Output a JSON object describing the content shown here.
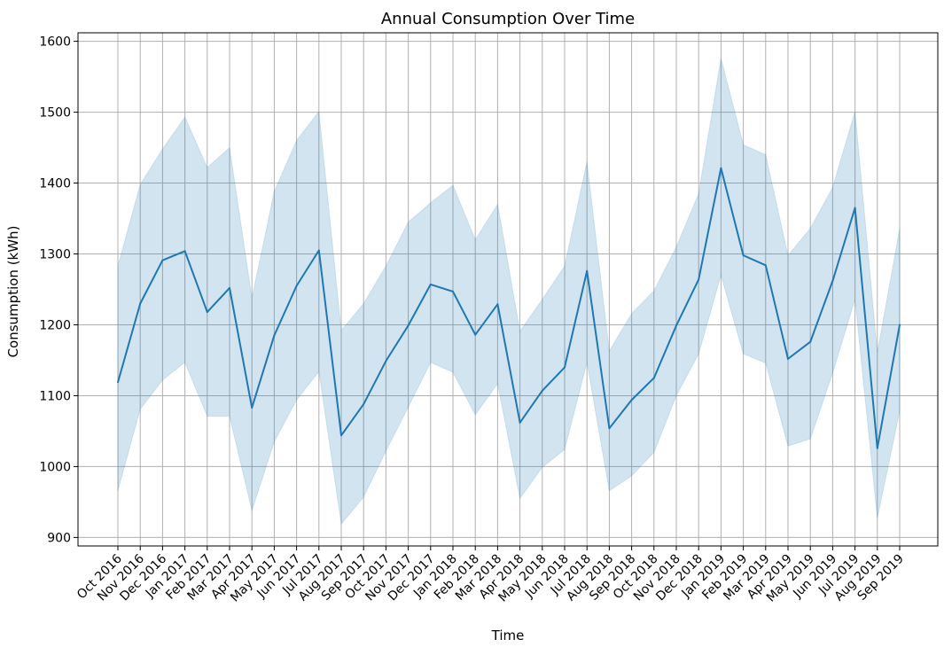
{
  "chart_data": {
    "type": "line",
    "title": "Annual Consumption Over Time",
    "xlabel": "Time",
    "ylabel": "Consumption (kWh)",
    "ylim": [
      888,
      1612
    ],
    "yticks": [
      900,
      1000,
      1100,
      1200,
      1300,
      1400,
      1500,
      1600
    ],
    "grid": true,
    "categories": [
      "Oct 2016",
      "Nov 2016",
      "Dec 2016",
      "Jan 2017",
      "Feb 2017",
      "Mar 2017",
      "Apr 2017",
      "May 2017",
      "Jun 2017",
      "Jul 2017",
      "Aug 2017",
      "Sep 2017",
      "Oct 2017",
      "Nov 2017",
      "Dec 2017",
      "Jan 2018",
      "Feb 2018",
      "Mar 2018",
      "Apr 2018",
      "May 2018",
      "Jun 2018",
      "Jul 2018",
      "Aug 2018",
      "Sep 2018",
      "Oct 2018",
      "Nov 2018",
      "Dec 2018",
      "Jan 2019",
      "Feb 2019",
      "Mar 2019",
      "Apr 2019",
      "May 2019",
      "Jun 2019",
      "Jul 2019",
      "Aug 2019",
      "Sep 2019"
    ],
    "series": [
      {
        "values": [
          1119,
          1230,
          1291,
          1304,
          1218,
          1252,
          1083,
          1185,
          1255,
          1305,
          1044,
          1088,
          1149,
          1199,
          1257,
          1247,
          1186,
          1229,
          1062,
          1107,
          1140,
          1276,
          1054,
          1094,
          1125,
          1199,
          1264,
          1421,
          1298,
          1284,
          1152,
          1176,
          1262,
          1365,
          1026,
          1200
        ],
        "upper": [
          1283,
          1398,
          1448,
          1493,
          1422,
          1450,
          1238,
          1388,
          1460,
          1501,
          1192,
          1230,
          1283,
          1345,
          1372,
          1397,
          1320,
          1370,
          1191,
          1236,
          1283,
          1430,
          1163,
          1216,
          1248,
          1310,
          1385,
          1576,
          1454,
          1440,
          1298,
          1336,
          1394,
          1501,
          1161,
          1336
        ],
        "lower": [
          966,
          1081,
          1122,
          1147,
          1071,
          1071,
          938,
          1035,
          1094,
          1134,
          919,
          957,
          1022,
          1084,
          1147,
          1133,
          1073,
          1117,
          955,
          999,
          1024,
          1147,
          966,
          987,
          1020,
          1100,
          1159,
          1270,
          1159,
          1146,
          1029,
          1039,
          1132,
          1236,
          927,
          1078
        ],
        "color": "#1f77b4",
        "band_color": "#1f77b4"
      }
    ]
  }
}
